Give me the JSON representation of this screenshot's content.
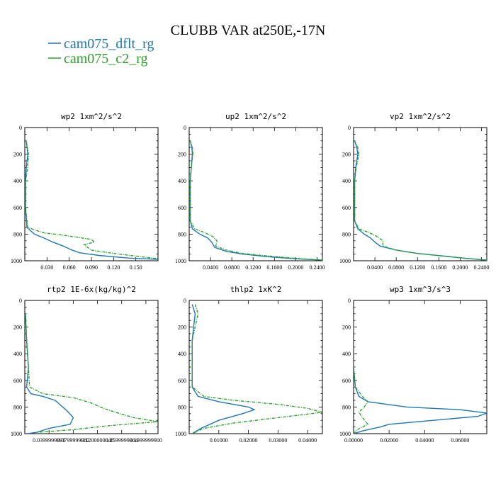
{
  "figure": {
    "title": "CLUBB VAR at250E,-17N",
    "series_colors": [
      "#1f77b4",
      "#2ca02c"
    ]
  },
  "chart_data": [
    {
      "type": "line",
      "title": "wp2  1xm^2/s^2",
      "xlabel": "",
      "ylabel": "",
      "xlim": [
        0,
        0.18
      ],
      "ylim": [
        1000,
        0
      ],
      "xticks": [
        "0.030",
        "0.060",
        "0.090",
        "0.120",
        "0.150"
      ],
      "xtick_values": [
        0.03,
        0.06,
        0.09,
        0.12,
        0.15
      ],
      "yticks": [
        0,
        200,
        400,
        600,
        800,
        1000
      ],
      "series": [
        {
          "name": "cam075_dflt_rg",
          "x": [
            0.002,
            0.004,
            0.002,
            0.001,
            0.001,
            0.003,
            0.013,
            0.026,
            0.038,
            0.052,
            0.064,
            0.074,
            0.1,
            0.14,
            0.18
          ],
          "y": [
            100,
            200,
            300,
            400,
            600,
            750,
            800,
            830,
            860,
            890,
            920,
            940,
            960,
            980,
            990
          ]
        },
        {
          "name": "cam075_c2_rg",
          "x": [
            0.002,
            0.005,
            0.004,
            0.001,
            0.001,
            0.004,
            0.025,
            0.055,
            0.09,
            0.094,
            0.08,
            0.09,
            0.12,
            0.15,
            0.18
          ],
          "y": [
            100,
            200,
            300,
            400,
            600,
            750,
            790,
            810,
            840,
            860,
            880,
            920,
            945,
            965,
            985
          ]
        }
      ]
    },
    {
      "type": "line",
      "title": "up2  1xm^2/s^2",
      "xlabel": "",
      "ylabel": "",
      "xlim": [
        0,
        0.25
      ],
      "ylim": [
        1000,
        0
      ],
      "xticks": [
        "0.0400",
        "0.0800",
        "0.1200",
        "0.1600",
        "0.2000",
        "0.2400"
      ],
      "xtick_values": [
        0.04,
        0.08,
        0.12,
        0.16,
        0.2,
        0.24
      ],
      "yticks": [
        0,
        200,
        400,
        600,
        800,
        1000
      ],
      "series": [
        {
          "name": "cam075_dflt_rg",
          "x": [
            0.002,
            0.005,
            0.006,
            0.004,
            0.002,
            0.002,
            0.006,
            0.02,
            0.035,
            0.042,
            0.048,
            0.07,
            0.1,
            0.15,
            0.2,
            0.25
          ],
          "y": [
            100,
            150,
            200,
            300,
            400,
            700,
            760,
            800,
            830,
            860,
            900,
            930,
            950,
            970,
            985,
            995
          ]
        },
        {
          "name": "cam075_c2_rg",
          "x": [
            0.002,
            0.006,
            0.007,
            0.004,
            0.002,
            0.002,
            0.01,
            0.03,
            0.045,
            0.052,
            0.05,
            0.07,
            0.1,
            0.15,
            0.2,
            0.25
          ],
          "y": [
            100,
            150,
            200,
            300,
            400,
            700,
            760,
            790,
            820,
            850,
            890,
            920,
            945,
            965,
            982,
            995
          ]
        }
      ]
    },
    {
      "type": "line",
      "title": "vp2  1xm^2/s^2",
      "xlabel": "",
      "ylabel": "",
      "xlim": [
        0,
        0.25
      ],
      "ylim": [
        1000,
        0
      ],
      "xticks": [
        "0.0400",
        "0.0800",
        "0.1200",
        "0.1600",
        "0.2000",
        "0.2400"
      ],
      "xtick_values": [
        0.04,
        0.08,
        0.12,
        0.16,
        0.2,
        0.24
      ],
      "yticks": [
        0,
        200,
        400,
        600,
        800,
        1000
      ],
      "series": [
        {
          "name": "cam075_dflt_rg",
          "x": [
            0.002,
            0.006,
            0.008,
            0.004,
            0.002,
            0.002,
            0.008,
            0.02,
            0.032,
            0.04,
            0.05,
            0.08,
            0.12,
            0.17,
            0.21,
            0.25
          ],
          "y": [
            100,
            150,
            200,
            300,
            400,
            700,
            760,
            800,
            830,
            860,
            890,
            920,
            945,
            965,
            982,
            995
          ]
        },
        {
          "name": "cam075_c2_rg",
          "x": [
            0.002,
            0.008,
            0.01,
            0.005,
            0.002,
            0.002,
            0.01,
            0.03,
            0.045,
            0.055,
            0.055,
            0.08,
            0.12,
            0.17,
            0.21,
            0.25
          ],
          "y": [
            100,
            150,
            200,
            300,
            400,
            700,
            760,
            790,
            820,
            850,
            890,
            920,
            945,
            965,
            982,
            995
          ]
        }
      ]
    },
    {
      "type": "line",
      "title": "rtp2  1E-6x(kg/kg)^2",
      "xlabel": "",
      "ylabel": "",
      "xlim": [
        0,
        0.22
      ],
      "ylim": [
        1000,
        0
      ],
      "xticks": [
        "0.0399999991",
        "0.0799999982",
        "0.1200000048",
        "0.1599999964",
        "0.1999999900"
      ],
      "xtick_values": [
        0.04,
        0.08,
        0.12,
        0.16,
        0.2
      ],
      "yticks": [
        0,
        200,
        400,
        600,
        800,
        1000
      ],
      "series": [
        {
          "name": "cam075_dflt_rg",
          "x": [
            0.001,
            0.003,
            0.006,
            0.003,
            0.01,
            0.03,
            0.05,
            0.06,
            0.07,
            0.08,
            0.075,
            0.04,
            0.02,
            0.005
          ],
          "y": [
            100,
            300,
            500,
            650,
            700,
            720,
            750,
            790,
            830,
            880,
            930,
            960,
            990,
            1000
          ]
        },
        {
          "name": "cam075_c2_rg",
          "x": [
            0.001,
            0.003,
            0.006,
            0.008,
            0.03,
            0.08,
            0.11,
            0.13,
            0.15,
            0.18,
            0.22,
            0.14,
            0.08,
            0.02
          ],
          "y": [
            100,
            300,
            500,
            650,
            700,
            730,
            770,
            810,
            840,
            880,
            910,
            940,
            970,
            990
          ]
        }
      ]
    },
    {
      "type": "line",
      "title": "thlp2  1xK^2",
      "xlabel": "",
      "ylabel": "",
      "xlim": [
        0,
        0.045
      ],
      "ylim": [
        1000,
        0
      ],
      "xticks": [
        "0.01000",
        "0.02000",
        "0.03000",
        "0.04000"
      ],
      "xtick_values": [
        0.01,
        0.02,
        0.03,
        0.04
      ],
      "yticks": [
        0,
        200,
        400,
        600,
        800,
        1000
      ],
      "series": [
        {
          "name": "cam075_dflt_rg",
          "x": [
            0.001,
            0.002,
            0.001,
            0.001,
            0.001,
            0.003,
            0.01,
            0.02,
            0.022,
            0.018,
            0.01,
            0.004,
            0.001
          ],
          "y": [
            30,
            100,
            300,
            500,
            650,
            720,
            760,
            800,
            820,
            850,
            900,
            960,
            1000
          ]
        },
        {
          "name": "cam075_c2_rg",
          "x": [
            0.002,
            0.003,
            0.001,
            0.001,
            0.001,
            0.005,
            0.015,
            0.03,
            0.04,
            0.045,
            0.03,
            0.015,
            0.005,
            0.001
          ],
          "y": [
            30,
            100,
            300,
            500,
            650,
            720,
            750,
            780,
            810,
            840,
            880,
            920,
            960,
            1000
          ]
        }
      ]
    },
    {
      "type": "line",
      "title": "wp3  1xm^3/s^3",
      "xlabel": "",
      "ylabel": "",
      "xlim": [
        0,
        0.075
      ],
      "ylim": [
        1000,
        0
      ],
      "xticks": [
        "0.00000",
        "0.02000",
        "0.04000",
        "0.06000"
      ],
      "xtick_values": [
        0.0,
        0.02,
        0.04,
        0.06
      ],
      "yticks": [
        0,
        200,
        400,
        600,
        800,
        1000
      ],
      "series": [
        {
          "name": "cam075_dflt_rg",
          "x": [
            0.0,
            0.0,
            0.001,
            0.003,
            0.008,
            0.03,
            0.06,
            0.075,
            0.07,
            0.045,
            0.02,
            0.015,
            0.005,
            0.0
          ],
          "y": [
            100,
            500,
            650,
            720,
            760,
            800,
            820,
            845,
            870,
            900,
            930,
            950,
            980,
            1000
          ]
        },
        {
          "name": "cam075_c2_rg",
          "x": [
            0.0,
            0.0,
            0.001,
            0.005,
            0.008,
            0.006,
            0.003,
            0.005,
            0.008,
            0.002,
            0.0
          ],
          "y": [
            100,
            500,
            650,
            720,
            760,
            800,
            840,
            880,
            930,
            970,
            1000
          ]
        }
      ]
    }
  ]
}
